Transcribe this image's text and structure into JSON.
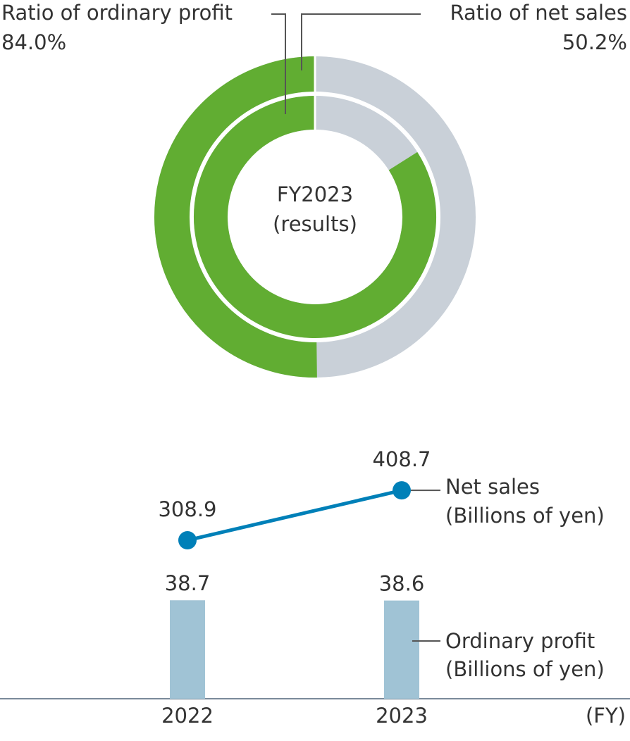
{
  "chart_data": [
    {
      "type": "donut",
      "center_text": [
        "FY2023",
        "(results)"
      ],
      "track_color": "#c9d0d8",
      "series": [
        {
          "name": "Ratio of net sales",
          "ring": "outer",
          "color": "#61ad32",
          "values": [
            50.2
          ],
          "value_labels": [
            "50.2%"
          ]
        },
        {
          "name": "Ratio of ordinary profit",
          "ring": "inner",
          "color": "#61ad32",
          "values": [
            84.0
          ],
          "value_labels": [
            "84.0%"
          ]
        }
      ]
    },
    {
      "type": "combo",
      "categories": [
        "2022",
        "2023"
      ],
      "xlabel": "(FY)",
      "ylim": [
        0,
        103
      ],
      "y2lim": [
        -8,
        516
      ],
      "series": [
        {
          "name": "Ordinary profit",
          "unit": "(Billions of yen)",
          "type": "bar",
          "color": "#a0c3d5",
          "values": [
            38.7,
            38.6
          ]
        },
        {
          "name": "Net sales",
          "unit": "(Billions of yen)",
          "type": "line",
          "axis": "y2",
          "color": "#0080b8",
          "values": [
            308.9,
            408.7
          ]
        }
      ]
    }
  ]
}
